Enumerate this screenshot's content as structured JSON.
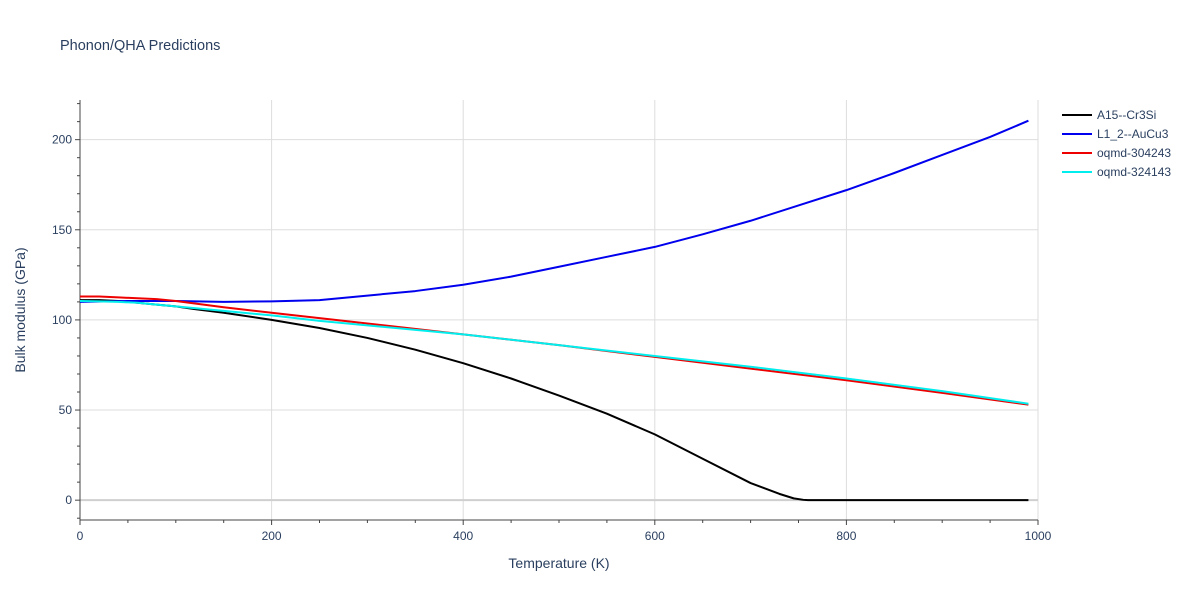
{
  "chart_data": {
    "type": "line",
    "title": "Phonon/QHA Predictions",
    "xlabel": "Temperature (K)",
    "ylabel": "Bulk modulus (GPa)",
    "xlim": [
      0,
      1000
    ],
    "ylim": [
      -11,
      222
    ],
    "x_ticks": [
      0,
      200,
      400,
      600,
      800,
      1000
    ],
    "y_ticks": [
      0,
      50,
      100,
      150,
      200
    ],
    "grid": true,
    "legend_position": "top-right",
    "series": [
      {
        "name": "A15--Cr3Si",
        "color": "#000000",
        "x": [
          0,
          20,
          40,
          60,
          80,
          100,
          120,
          150,
          200,
          250,
          300,
          350,
          400,
          450,
          500,
          550,
          600,
          650,
          700,
          730,
          745,
          755,
          760,
          780,
          800,
          900,
          990
        ],
        "y": [
          111,
          111,
          110.5,
          109.5,
          108.5,
          107.5,
          106,
          104,
          100,
          95.5,
          90,
          83.5,
          76,
          67.5,
          58,
          48,
          36.5,
          23,
          9.5,
          3.5,
          1,
          0.2,
          0,
          0,
          0,
          0,
          0
        ]
      },
      {
        "name": "L1_2--AuCu3",
        "color": "#0000ee",
        "x": [
          0,
          50,
          100,
          150,
          200,
          250,
          300,
          350,
          400,
          450,
          500,
          550,
          600,
          650,
          700,
          750,
          800,
          850,
          900,
          950,
          990
        ],
        "y": [
          110,
          110.5,
          110.5,
          110,
          110.3,
          111,
          113.5,
          116,
          119.5,
          124,
          129.5,
          135,
          140.5,
          147.5,
          155,
          163.5,
          172,
          181.5,
          191.5,
          201.5,
          210.5
        ]
      },
      {
        "name": "oqmd-304243",
        "color": "#ee0000",
        "x": [
          0,
          20,
          40,
          60,
          80,
          100,
          150,
          200,
          250,
          300,
          400,
          500,
          600,
          700,
          800,
          900,
          990
        ],
        "y": [
          113,
          113,
          112.5,
          112,
          111.5,
          110.5,
          107,
          104,
          101,
          98,
          92,
          86,
          79.5,
          73,
          66.5,
          59.5,
          53
        ]
      },
      {
        "name": "oqmd-324143",
        "color": "#00eeee",
        "x": [
          0,
          20,
          40,
          60,
          80,
          100,
          150,
          200,
          250,
          300,
          400,
          500,
          600,
          700,
          800,
          900,
          990
        ],
        "y": [
          110.5,
          110.3,
          110,
          109.5,
          108.5,
          107.5,
          105,
          102.5,
          99.5,
          97,
          92,
          86,
          80,
          74,
          67.5,
          60.5,
          53.5
        ]
      }
    ]
  }
}
